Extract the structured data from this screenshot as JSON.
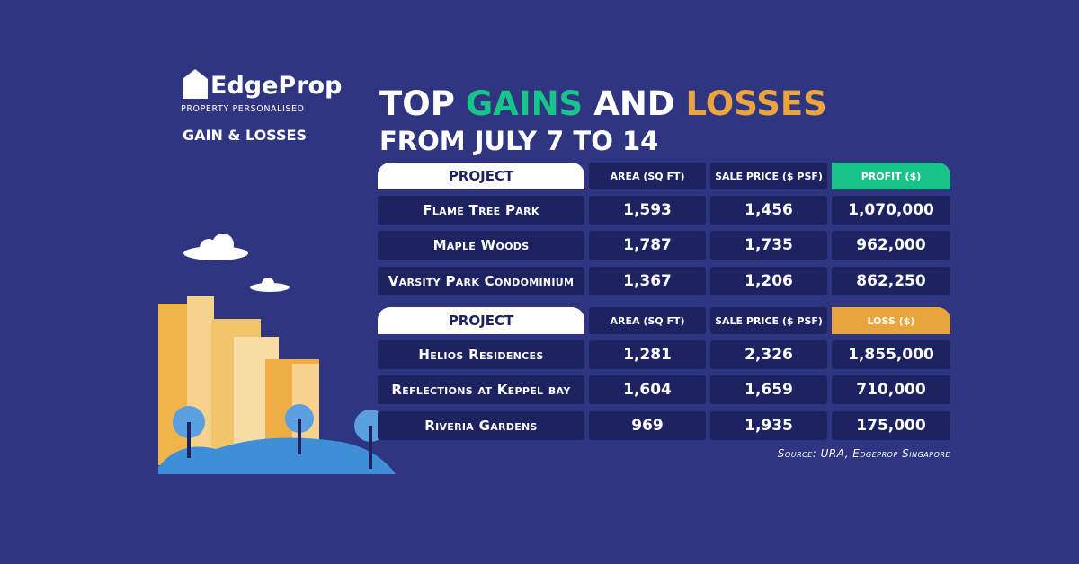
{
  "brand": {
    "name": "EdgeProp",
    "tagline": "PROPERTY PERSONALISED",
    "section": "GAIN & LOSSES"
  },
  "title": {
    "words": [
      "TOP",
      "GAINS",
      "AND",
      "LOSSES"
    ],
    "subtitle": "FROM JULY 7 TO 14"
  },
  "tables": [
    {
      "header": [
        "PROJECT",
        "AREA (SQ FT)",
        "SALE PRICE ($ PSF)",
        "PROFIT ($)"
      ],
      "rows": [
        [
          "Flame Tree Park",
          "1,593",
          "1,456",
          "1,070,000"
        ],
        [
          "Maple Woods",
          "1,787",
          "1,735",
          "962,000"
        ],
        [
          "Varsity Park Condominium",
          "1,367",
          "1,206",
          "862,250"
        ]
      ]
    },
    {
      "header": [
        "PROJECT",
        "AREA (SQ FT)",
        "SALE PRICE ($ PSF)",
        "LOSS ($)"
      ],
      "rows": [
        [
          "Helios Residences",
          "1,281",
          "2,326",
          "1,855,000"
        ],
        [
          "Reflections at Keppel bay",
          "1,604",
          "1,659",
          "710,000"
        ],
        [
          "Riveria Gardens",
          "969",
          "1,935",
          "175,000"
        ]
      ]
    }
  ],
  "source": "Source: URA, Edgeprop Singapore"
}
